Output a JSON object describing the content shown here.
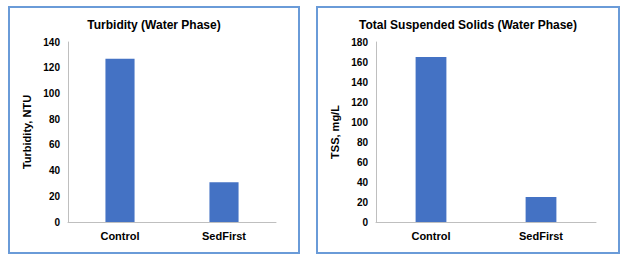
{
  "chart_data": [
    {
      "type": "bar",
      "title": "Turbidity (Water Phase)",
      "y_label": "Turbidity, NTU",
      "categories": [
        "Control",
        "SedFirst"
      ],
      "values": [
        127,
        31
      ],
      "color": "#4472c4",
      "ylim": [
        0,
        140
      ],
      "yticks": [
        0,
        20,
        40,
        60,
        80,
        100,
        120,
        140
      ],
      "grid": false
    },
    {
      "type": "bar",
      "title": "Total Suspended Solids (Water Phase)",
      "y_label": "TSS, mg/L",
      "categories": [
        "Control",
        "SedFirst"
      ],
      "values": [
        165,
        25
      ],
      "color": "#4472c4",
      "ylim": [
        0,
        180
      ],
      "yticks": [
        0,
        20,
        40,
        60,
        80,
        100,
        120,
        140,
        160,
        180
      ],
      "grid": false
    }
  ]
}
